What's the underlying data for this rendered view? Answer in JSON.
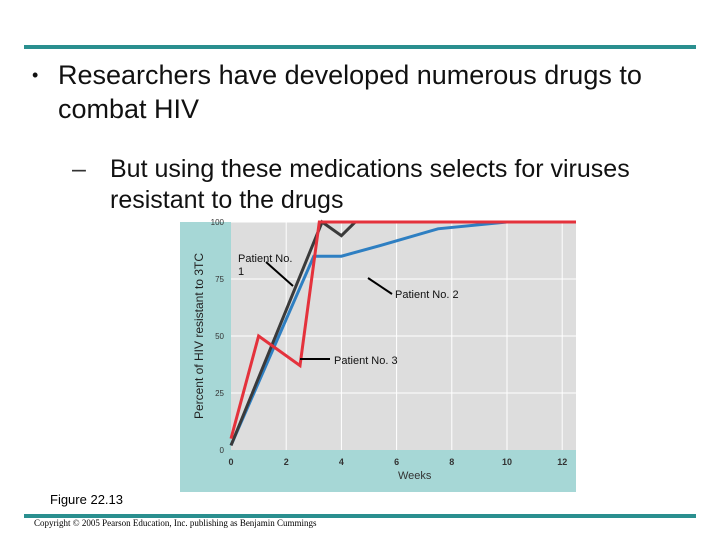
{
  "slide": {
    "bullet_marker": "•",
    "bullet_text": "Researchers have developed numerous drugs to combat HIV",
    "sub_marker": "–",
    "sub_text": "But using these medications selects for viruses resistant to the drugs",
    "figure_label": "Figure 22.13",
    "copyright": "Copyright © 2005 Pearson Education, Inc. publishing as Benjamin Cummings"
  },
  "colors": {
    "rule": "#2a8f8f",
    "panel_bg": "#a6d7d6",
    "plot_bg": "#dddddd",
    "grid": "#ffffff",
    "patient1": "#3a3a3a",
    "patient2": "#2e7fc2",
    "patient3": "#e4323c"
  },
  "chart_data": {
    "type": "line",
    "title": "",
    "xlabel": "Weeks",
    "ylabel": "Percent of HIV resistant to 3TC",
    "xlim": [
      0,
      12.5
    ],
    "ylim": [
      0,
      100
    ],
    "x_ticks": [
      "0",
      "2",
      "4",
      "6",
      "8",
      "10",
      "12"
    ],
    "y_ticks": [
      "0",
      "25",
      "50",
      "75",
      "100"
    ],
    "grid": true,
    "series": [
      {
        "name": "Patient No. 1",
        "label": "Patient No. 1",
        "color_key": "patient1",
        "points": [
          [
            0,
            2
          ],
          [
            3.3,
            100
          ],
          [
            4.0,
            94
          ],
          [
            4.5,
            100
          ],
          [
            12.5,
            100
          ]
        ]
      },
      {
        "name": "Patient No. 2",
        "label": "Patient No. 2",
        "color_key": "patient2",
        "points": [
          [
            0,
            2
          ],
          [
            3.0,
            85
          ],
          [
            4.0,
            85
          ],
          [
            5.5,
            90
          ],
          [
            7.5,
            97
          ],
          [
            10.0,
            100
          ],
          [
            12.5,
            100
          ]
        ]
      },
      {
        "name": "Patient No. 3",
        "label": "Patient No. 3",
        "color_key": "patient3",
        "points": [
          [
            0,
            5
          ],
          [
            1.0,
            50
          ],
          [
            2.5,
            37
          ],
          [
            3.2,
            100
          ],
          [
            12.5,
            100
          ]
        ]
      }
    ]
  }
}
